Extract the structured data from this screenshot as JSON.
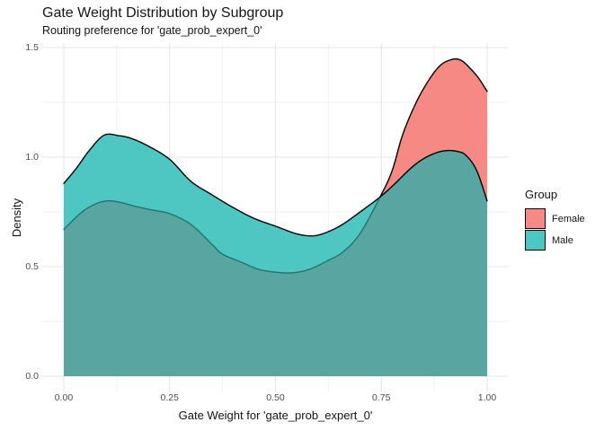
{
  "title": "Gate Weight Distribution by Subgroup",
  "subtitle": "Routing preference for 'gate_prob_expert_0'",
  "x_axis": {
    "label": "Gate Weight for 'gate_prob_expert_0'",
    "ticks": [
      "0.00",
      "0.25",
      "0.50",
      "0.75",
      "1.00"
    ],
    "tick_values": [
      0,
      0.25,
      0.5,
      0.75,
      1.0
    ],
    "minor_values": [
      0.125,
      0.375,
      0.625,
      0.875
    ]
  },
  "y_axis": {
    "label": "Density",
    "ticks": [
      "0.0",
      "0.5",
      "1.0",
      "1.5"
    ],
    "tick_values": [
      0,
      0.5,
      1.0,
      1.5
    ],
    "minor_values": [
      0.25,
      0.75,
      1.25
    ]
  },
  "legend": {
    "title": "Group",
    "items": [
      {
        "label": "Female",
        "color": "#F68983"
      },
      {
        "label": "Male",
        "color": "#4EC7C2"
      }
    ]
  },
  "chart_data": {
    "type": "area",
    "subtype": "overlapping-density",
    "title": "Gate Weight Distribution by Subgroup",
    "xlabel": "Gate Weight for 'gate_prob_expert_0'",
    "ylabel": "Density",
    "xlim": [
      0,
      1
    ],
    "ylim": [
      0,
      1.5
    ],
    "grid": "on",
    "legend_position": "right",
    "series": [
      {
        "name": "Female",
        "fill": "#F68983",
        "x": [
          0,
          0.04,
          0.07,
          0.1,
          0.13,
          0.17,
          0.21,
          0.25,
          0.3,
          0.35,
          0.375,
          0.42,
          0.46,
          0.5,
          0.54,
          0.58,
          0.625,
          0.66,
          0.7,
          0.747,
          0.775,
          0.8,
          0.83,
          0.86,
          0.89,
          0.92,
          0.94,
          0.96,
          0.98,
          1.0
        ],
        "density": [
          0.67,
          0.745,
          0.782,
          0.8,
          0.795,
          0.775,
          0.758,
          0.742,
          0.693,
          0.602,
          0.557,
          0.52,
          0.488,
          0.475,
          0.472,
          0.488,
          0.529,
          0.568,
          0.652,
          0.818,
          0.935,
          1.1,
          1.24,
          1.345,
          1.42,
          1.447,
          1.44,
          1.405,
          1.36,
          1.3
        ]
      },
      {
        "name": "Male",
        "fill": "#4EC7C2",
        "x": [
          0,
          0.03,
          0.06,
          0.095,
          0.13,
          0.16,
          0.2,
          0.25,
          0.3,
          0.35,
          0.4,
          0.45,
          0.5,
          0.55,
          0.59,
          0.625,
          0.66,
          0.7,
          0.747,
          0.78,
          0.82,
          0.85,
          0.88,
          0.905,
          0.93,
          0.95,
          0.975,
          1.0
        ],
        "density": [
          0.88,
          0.95,
          1.03,
          1.1,
          1.098,
          1.085,
          1.05,
          0.99,
          0.89,
          0.828,
          0.77,
          0.72,
          0.685,
          0.65,
          0.641,
          0.66,
          0.695,
          0.75,
          0.818,
          0.875,
          0.95,
          0.993,
          1.02,
          1.03,
          1.026,
          1.008,
          0.94,
          0.8
        ]
      }
    ],
    "overlap_fill": "#59A5A1",
    "outline_color": "#000000",
    "covered_outline_color": "#1E7672",
    "grid_major_color": "#E4E4E4",
    "grid_minor_color": "#F2F2F2"
  }
}
